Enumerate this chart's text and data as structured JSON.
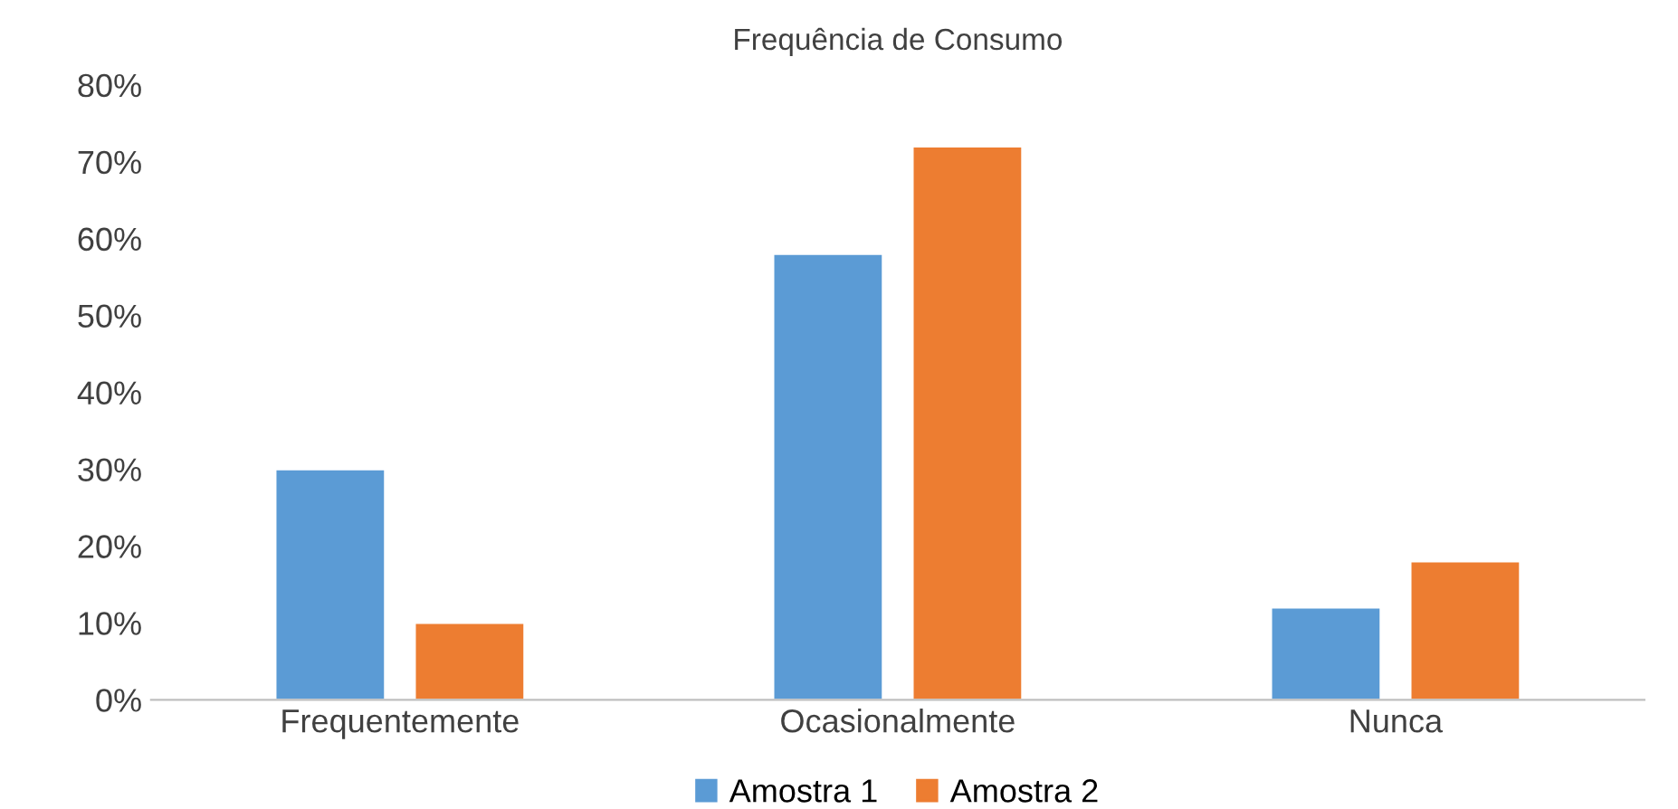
{
  "chart_data": {
    "type": "bar",
    "title": "Frequência de Consumo",
    "categories": [
      "Frequentemente",
      "Ocasionalmente",
      "Nunca"
    ],
    "series": [
      {
        "name": "Amostra 1",
        "color": "#5b9bd5",
        "values": [
          30,
          58,
          12
        ]
      },
      {
        "name": "Amostra 2",
        "color": "#ed7d31",
        "values": [
          10,
          72,
          18
        ]
      }
    ],
    "ylim": [
      0,
      80
    ],
    "yticks": [
      {
        "value": 0,
        "label": "0%"
      },
      {
        "value": 10,
        "label": "10%"
      },
      {
        "value": 20,
        "label": "20%"
      },
      {
        "value": 30,
        "label": "30%"
      },
      {
        "value": 40,
        "label": "40%"
      },
      {
        "value": 50,
        "label": "50%"
      },
      {
        "value": 60,
        "label": "60%"
      },
      {
        "value": 70,
        "label": "70%"
      },
      {
        "value": 80,
        "label": "80%"
      }
    ],
    "grid": false,
    "legend": "bottom"
  }
}
